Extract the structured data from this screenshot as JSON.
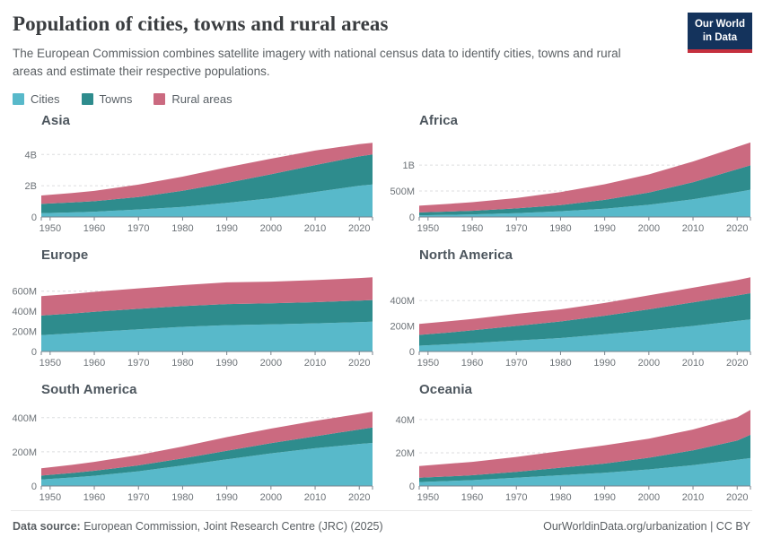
{
  "header": {
    "title": "Population of cities, towns and rural areas",
    "subtitle": "The European Commission combines satellite imagery with national census data to identify cities, towns and rural areas and estimate their respective populations.",
    "logo_line1": "Our World",
    "logo_line2": "in Data"
  },
  "legend": {
    "items": [
      {
        "label": "Cities",
        "color": "#58b9ca"
      },
      {
        "label": "Towns",
        "color": "#2e8c8d"
      },
      {
        "label": "Rural areas",
        "color": "#cb6a80"
      }
    ]
  },
  "footer": {
    "source_label": "Data source:",
    "source_text": " European Commission, Joint Research Centre (JRC) (2025)",
    "right_text": "OurWorldinData.org/urbanization | CC BY"
  },
  "chart_data": {
    "type": "area",
    "stacked": true,
    "unit": "million people",
    "grid": "dashed horizontal",
    "legend_position": "top-left",
    "x_domain": [
      1948,
      2023
    ],
    "xticks": [
      1950,
      1960,
      1970,
      1980,
      1990,
      2000,
      2010,
      2020
    ],
    "years": [
      1948,
      1955,
      1960,
      1970,
      1980,
      1990,
      2000,
      2010,
      2020,
      2023
    ],
    "series_order": [
      "cities",
      "towns",
      "rural"
    ],
    "colors": {
      "cities": "#58b9ca",
      "towns": "#2e8c8d",
      "rural": "#cb6a80",
      "gridline": "#dcdddf",
      "axis": "#7a838c",
      "tick_label": "#6d7378"
    },
    "charts": [
      {
        "id": "asia",
        "title": "Asia",
        "ymax": 5050,
        "yticks": [
          {
            "value": 0,
            "label": "0"
          },
          {
            "value": 2000,
            "label": "2B"
          },
          {
            "value": 4000,
            "label": "4B"
          }
        ],
        "cities": [
          240,
          290,
          340,
          480,
          650,
          900,
          1200,
          1600,
          2000,
          2080
        ],
        "towns": [
          600,
          640,
          670,
          800,
          1030,
          1280,
          1530,
          1720,
          1880,
          1920
        ],
        "rural": [
          540,
          600,
          660,
          790,
          900,
          1000,
          1000,
          930,
          780,
          750
        ]
      },
      {
        "id": "africa",
        "title": "Africa",
        "ymax": 1520,
        "yticks": [
          {
            "value": 0,
            "label": "0"
          },
          {
            "value": 500,
            "label": "500M"
          },
          {
            "value": 1000,
            "label": "1B"
          }
        ],
        "cities": [
          33,
          42,
          50,
          75,
          110,
          160,
          235,
          340,
          480,
          525
        ],
        "towns": [
          55,
          63,
          70,
          90,
          120,
          170,
          235,
          330,
          440,
          470
        ],
        "rural": [
          130,
          150,
          165,
          200,
          250,
          300,
          350,
          400,
          430,
          440
        ]
      },
      {
        "id": "europe",
        "title": "Europe",
        "ymax": 785,
        "yticks": [
          {
            "value": 0,
            "label": "0"
          },
          {
            "value": 200,
            "label": "200M"
          },
          {
            "value": 400,
            "label": "400M"
          },
          {
            "value": 600,
            "label": "600M"
          }
        ],
        "cities": [
          163,
          180,
          195,
          220,
          245,
          262,
          270,
          280,
          293,
          297
        ],
        "towns": [
          195,
          198,
          200,
          205,
          206,
          210,
          210,
          211,
          214,
          215
        ],
        "rural": [
          192,
          196,
          198,
          203,
          209,
          216,
          215,
          219,
          224,
          226
        ]
      },
      {
        "id": "north-america",
        "title": "North America",
        "ymax": 620,
        "yticks": [
          {
            "value": 0,
            "label": "0"
          },
          {
            "value": 200,
            "label": "200M"
          },
          {
            "value": 400,
            "label": "400M"
          }
        ],
        "cities": [
          46,
          57,
          66,
          86,
          106,
          136,
          166,
          201,
          240,
          252
        ],
        "towns": [
          84,
          93,
          100,
          115,
          130,
          145,
          165,
          185,
          200,
          206
        ],
        "rural": [
          86,
          89,
          90,
          95,
          95,
          100,
          110,
          115,
          121,
          125
        ]
      },
      {
        "id": "south-america",
        "title": "South America",
        "ymax": 462,
        "yticks": [
          {
            "value": 0,
            "label": "0"
          },
          {
            "value": 200,
            "label": "200M"
          },
          {
            "value": 400,
            "label": "400M"
          }
        ],
        "cities": [
          38,
          50,
          60,
          86,
          120,
          156,
          191,
          221,
          246,
          252
        ],
        "towns": [
          23,
          26,
          29,
          35,
          41,
          50,
          60,
          70,
          85,
          91
        ],
        "rural": [
          43,
          48,
          52,
          60,
          70,
          80,
          85,
          90,
          91,
          92
        ]
      },
      {
        "id": "oceania",
        "title": "Oceania",
        "ymax": 47.5,
        "yticks": [
          {
            "value": 0,
            "label": "0"
          },
          {
            "value": 20,
            "label": "20M"
          },
          {
            "value": 40,
            "label": "40M"
          }
        ],
        "cities": [
          2.4,
          3.0,
          3.5,
          5.0,
          6.5,
          8.0,
          10.0,
          12.5,
          15.8,
          16.8
        ],
        "towns": [
          2.6,
          2.8,
          3.0,
          3.5,
          4.5,
          5.5,
          7.0,
          9.0,
          11.5,
          14.0
        ],
        "rural": [
          7.0,
          7.7,
          8.0,
          9.0,
          10.0,
          11.0,
          11.5,
          12.5,
          14.0,
          15.0
        ]
      }
    ]
  }
}
